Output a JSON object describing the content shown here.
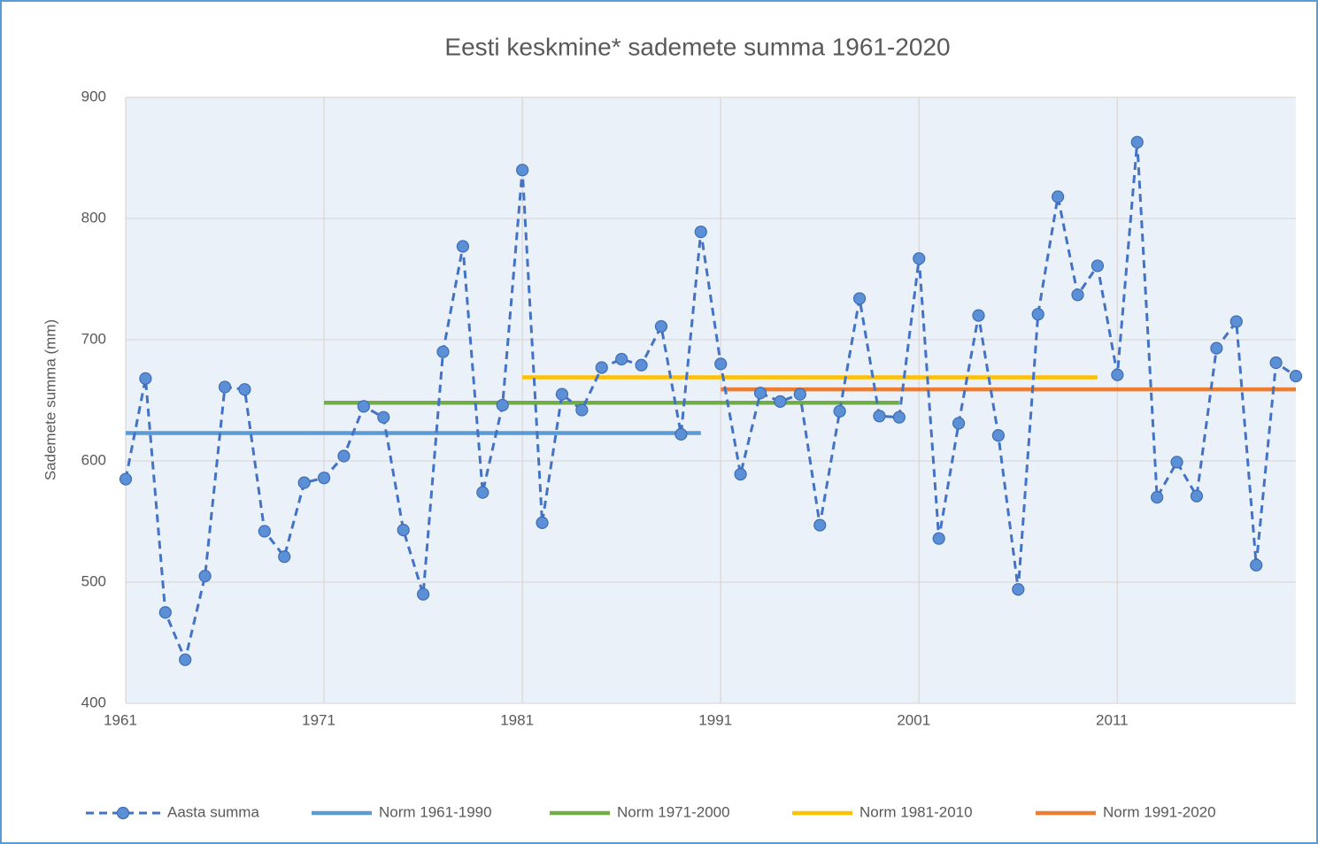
{
  "chart_data": {
    "type": "line",
    "title": "Eesti keskmine* sademete summa 1961-2020",
    "y_label": "Sademete summa (mm)",
    "x": [
      1961,
      1962,
      1963,
      1964,
      1965,
      1966,
      1967,
      1968,
      1969,
      1970,
      1971,
      1972,
      1973,
      1974,
      1975,
      1976,
      1977,
      1978,
      1979,
      1980,
      1981,
      1982,
      1983,
      1984,
      1985,
      1986,
      1987,
      1988,
      1989,
      1990,
      1991,
      1992,
      1993,
      1994,
      1995,
      1996,
      1997,
      1998,
      1999,
      2000,
      2001,
      2002,
      2003,
      2004,
      2005,
      2006,
      2007,
      2008,
      2009,
      2010,
      2011,
      2012,
      2013,
      2014,
      2015,
      2016,
      2017,
      2018,
      2019,
      2020
    ],
    "series": [
      {
        "name": "Aasta summa",
        "color": "#4472c4",
        "style": "dashed",
        "marker": "circle",
        "values": [
          585,
          668,
          475,
          436,
          505,
          661,
          659,
          542,
          521,
          582,
          586,
          604,
          645,
          636,
          543,
          490,
          690,
          777,
          574,
          646,
          840,
          549,
          655,
          642,
          677,
          684,
          679,
          711,
          622,
          789,
          680,
          589,
          656,
          649,
          655,
          547,
          641,
          734,
          637,
          636,
          767,
          536,
          631,
          720,
          621,
          494,
          721,
          818,
          737,
          761,
          671,
          863,
          570,
          599,
          571,
          693,
          715,
          514,
          681,
          670
        ]
      },
      {
        "name": "Norm 1961-1990",
        "color": "#5b9bd5",
        "style": "solid",
        "x": [
          1961,
          1990
        ],
        "values": [
          623,
          623
        ]
      },
      {
        "name": "Norm 1971-2000",
        "color": "#70ad47",
        "style": "solid",
        "x": [
          1971,
          2000
        ],
        "values": [
          648,
          648
        ]
      },
      {
        "name": "Norm 1981-2010",
        "color": "#ffc000",
        "style": "solid",
        "x": [
          1981,
          2010
        ],
        "values": [
          669,
          669
        ]
      },
      {
        "name": "Norm 1991-2020",
        "color": "#ed7d31",
        "style": "solid",
        "x": [
          1991,
          2020
        ],
        "values": [
          659,
          659
        ]
      }
    ],
    "xlim": [
      1961,
      2020
    ],
    "xticks": [
      1961,
      1971,
      1981,
      1991,
      2001,
      2011
    ],
    "ylim": [
      400,
      900
    ],
    "yticks": [
      400,
      500,
      600,
      700,
      800,
      900
    ],
    "grid": true,
    "legend": "bottom"
  }
}
